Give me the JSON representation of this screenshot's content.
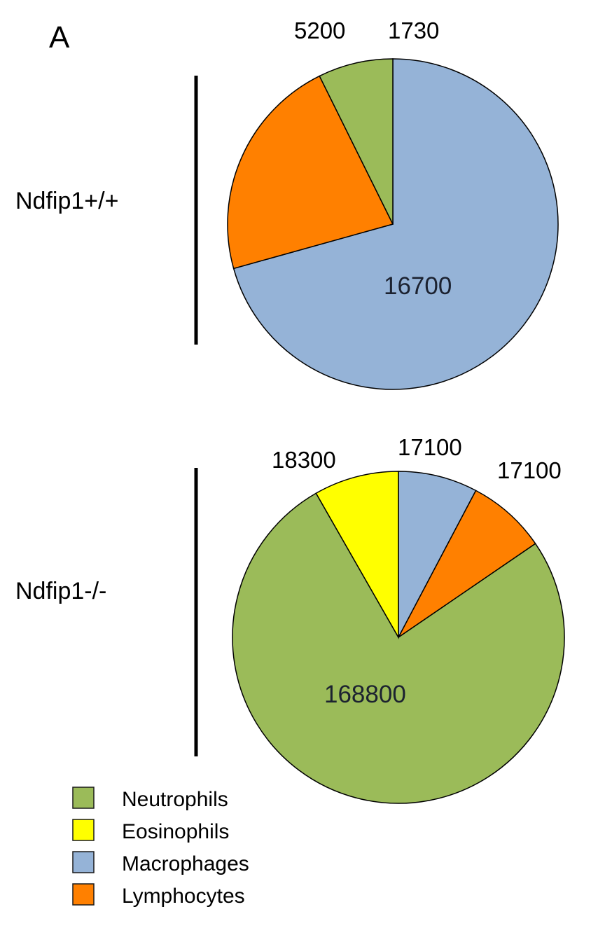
{
  "panel_label": "A",
  "colors": {
    "Neutrophils": "#9bbb59",
    "Eosinophils": "#ffff00",
    "Macrophages": "#95b3d7",
    "Lymphocytes": "#ff8000"
  },
  "chart_data": [
    {
      "type": "pie",
      "group": "Ndfip1+/+",
      "slices": [
        {
          "category": "Macrophages",
          "value": 16700
        },
        {
          "category": "Lymphocytes",
          "value": 5200
        },
        {
          "category": "Neutrophils",
          "value": 1730
        }
      ]
    },
    {
      "type": "pie",
      "group": "Ndfip1-/-",
      "slices": [
        {
          "category": "Macrophages",
          "value": 17100
        },
        {
          "category": "Lymphocytes",
          "value": 17100
        },
        {
          "category": "Neutrophils",
          "value": 168800
        },
        {
          "category": "Eosinophils",
          "value": 18300
        }
      ]
    }
  ],
  "legend": [
    {
      "label": "Neutrophils",
      "color": "#9bbb59"
    },
    {
      "label": "Eosinophils",
      "color": "#ffff00"
    },
    {
      "label": "Macrophages",
      "color": "#95b3d7"
    },
    {
      "label": "Lymphocytes",
      "color": "#ff8000"
    }
  ]
}
